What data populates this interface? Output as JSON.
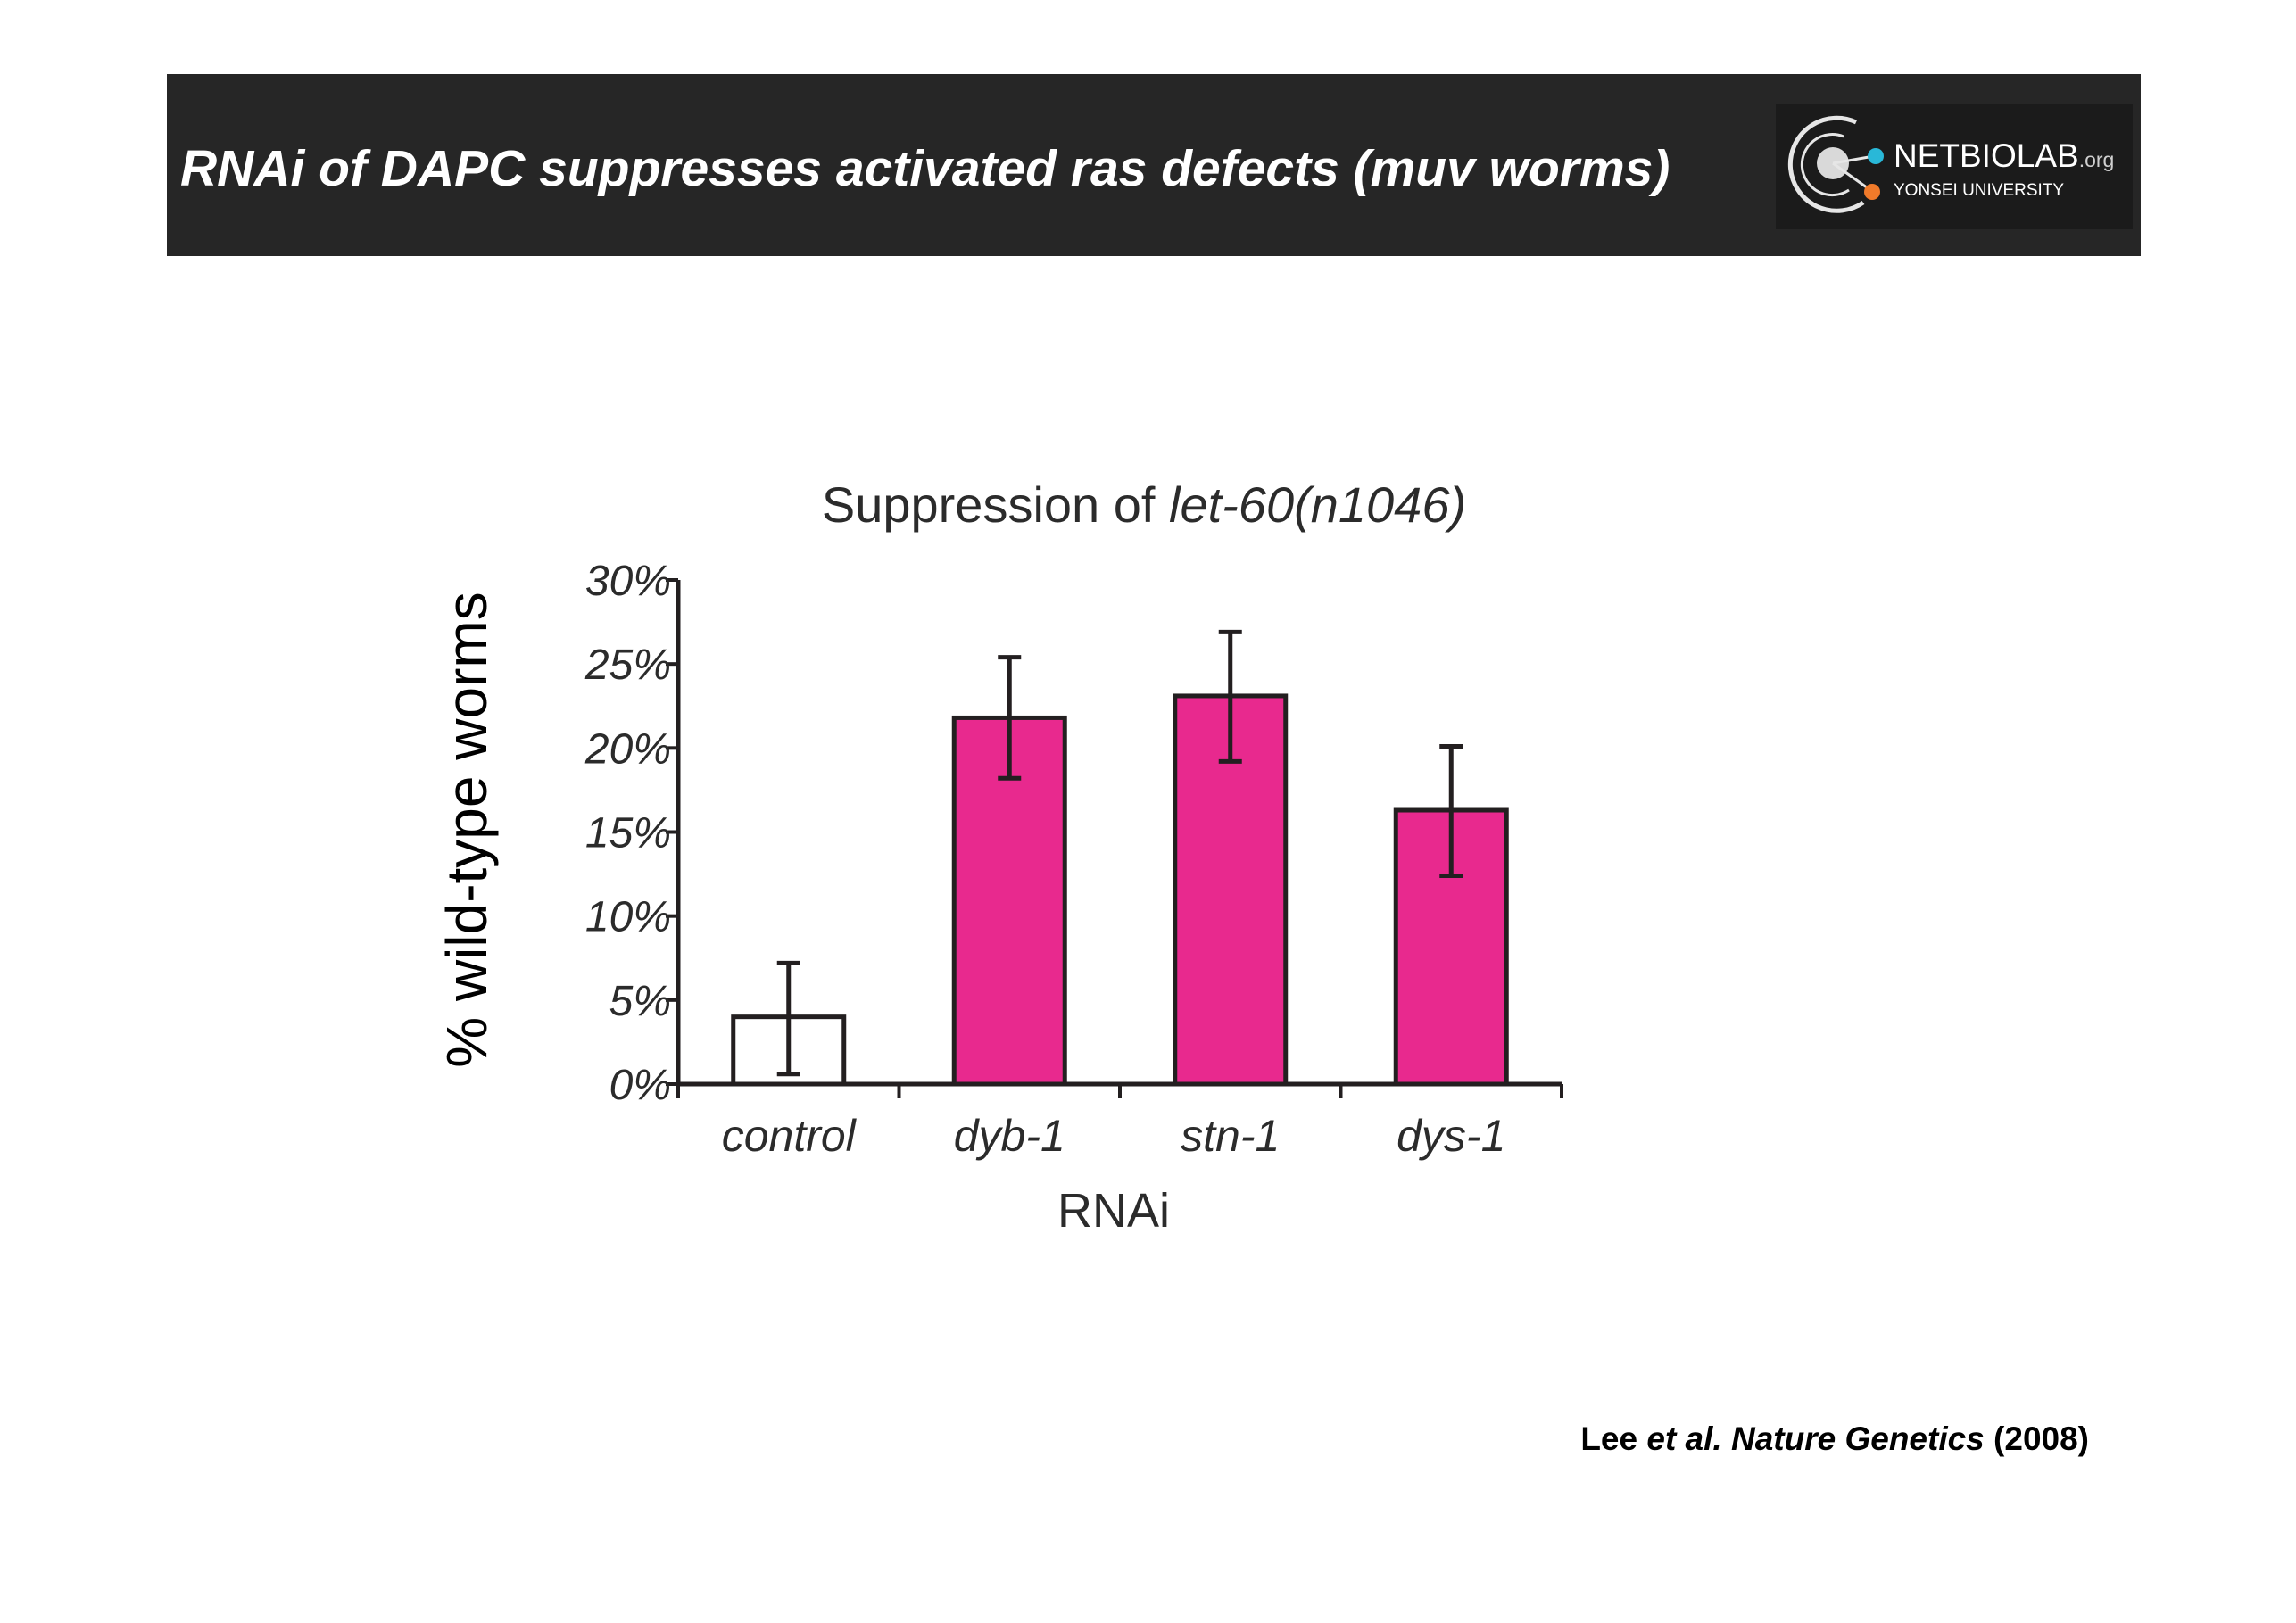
{
  "slide": {
    "title": "RNAi of DAPC suppresses activated ras defects (muv worms)"
  },
  "logo": {
    "name": "NETBIOLAB",
    "suffix": ".org",
    "subtitle": "YONSEI UNIVERSITY",
    "colors": {
      "cyan": "#29b8d8",
      "orange": "#f07a2a",
      "ring": "#e6e6e6"
    }
  },
  "citation": {
    "authors": "Lee",
    "etal": "et al.",
    "journal": "Nature Genetics",
    "year": "(2008)"
  },
  "chart_data": {
    "type": "bar",
    "title_prefix": "Suppression of ",
    "title_gene": "let-60(n1046)",
    "xlabel": "RNAi",
    "ylabel": "% wild-type worms",
    "categories": [
      "control",
      "dyb-1",
      "stn-1",
      "dys-1"
    ],
    "values": [
      4,
      21.8,
      23.1,
      16.3
    ],
    "error_low": [
      0.6,
      18.2,
      19.2,
      12.4
    ],
    "error_high": [
      7.2,
      25.4,
      26.9,
      20.1
    ],
    "bar_colors": [
      "#ffffff",
      "#e8298e",
      "#e8298e",
      "#e8298e"
    ],
    "ylim": [
      0,
      30
    ],
    "yticks": [
      0,
      5,
      10,
      15,
      20,
      25,
      30
    ],
    "ytick_labels": [
      "0%",
      "5%",
      "10%",
      "15%",
      "20%",
      "25%",
      "30%"
    ],
    "grid": false
  }
}
